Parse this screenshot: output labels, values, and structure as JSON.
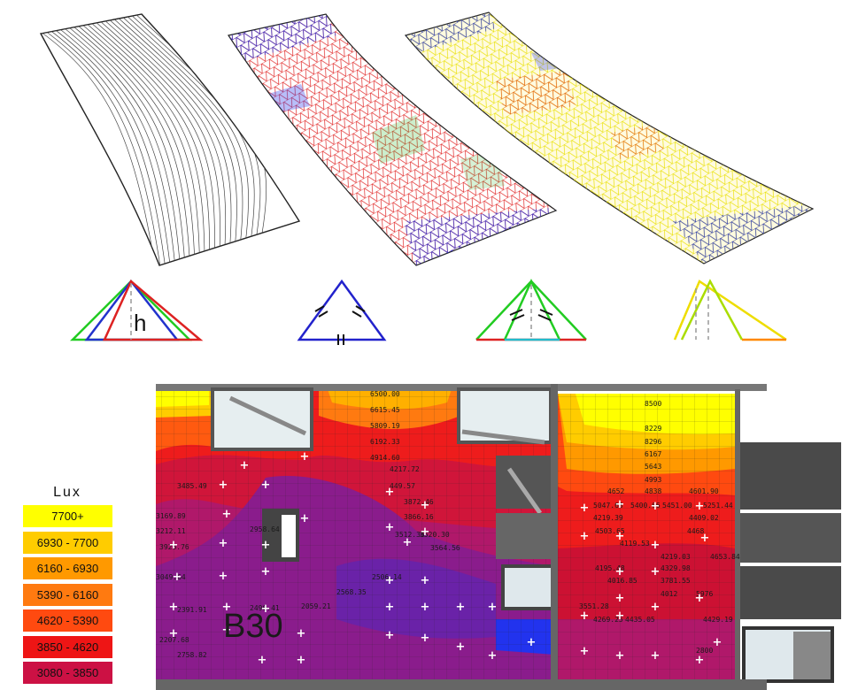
{
  "legend": {
    "title": "Lux",
    "bins": [
      {
        "label": "7700+",
        "color": "#ffff00"
      },
      {
        "label": "6930 - 7700",
        "color": "#ffcc00"
      },
      {
        "label": "6160 - 6930",
        "color": "#ff9900"
      },
      {
        "label": "5390 - 6160",
        "color": "#ff7a10"
      },
      {
        "label": "4620 - 5390",
        "color": "#ff4a10"
      },
      {
        "label": "3850 - 4620",
        "color": "#ee1515"
      },
      {
        "label": "3080 - 3850",
        "color": "#cc1144"
      }
    ]
  },
  "triangle_h_label": "h",
  "plan": {
    "zone_label": "B30",
    "room1_values": [
      "6500.00",
      "6615.45",
      "5809.19",
      "6192.33",
      "4914.60",
      "4217.72",
      "449.57",
      "3872.46",
      "3866.16",
      "3512.36",
      "3520.30",
      "3564.56",
      "2059.21",
      "2568.35",
      "2506.14"
    ],
    "room1_left_values": [
      "3169.89",
      "3212.11",
      "3049.64",
      "2391.91",
      "2207.68",
      "2758.82",
      "3485.49",
      "3926.76",
      "2958.64",
      "2490.41"
    ],
    "room2_values": [
      "8500",
      "8229",
      "8296",
      "6167",
      "5643",
      "4993",
      "4652",
      "4838",
      "4601.90",
      "5047.63",
      "5400.66",
      "5451.00",
      "5251.44",
      "4219.39",
      "4409.02",
      "4503.65",
      "4468",
      "4119.53",
      "4219.03",
      "4653.84",
      "4195.48",
      "4329.98",
      "4016.85",
      "3781.55",
      "3551.28",
      "4012",
      "5976",
      "4269.25",
      "4435.05",
      "4429.19",
      "2800"
    ]
  }
}
